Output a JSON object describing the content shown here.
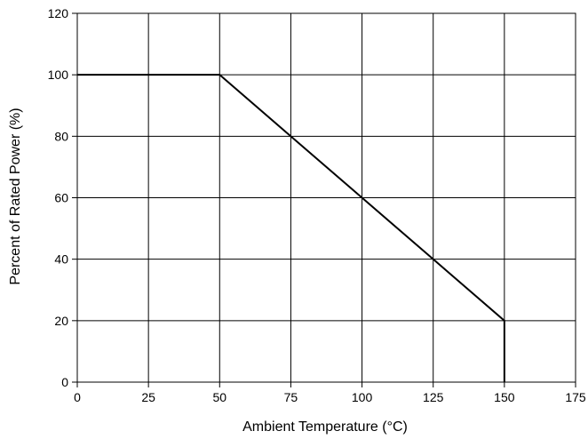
{
  "chart_data": {
    "type": "line",
    "title": "",
    "xlabel": "Ambient Temperature (°C)",
    "ylabel": "Percent of Rated Power (%)",
    "xlim": [
      0,
      175
    ],
    "ylim": [
      0,
      120
    ],
    "x_ticks": [
      0,
      25,
      50,
      75,
      100,
      125,
      150,
      175
    ],
    "y_ticks": [
      0,
      20,
      40,
      60,
      80,
      100,
      120
    ],
    "grid": true,
    "legend": "none",
    "series": [
      {
        "x": [
          0,
          50,
          75,
          100,
          125,
          150,
          150
        ],
        "y": [
          100,
          100,
          80,
          60,
          40,
          20,
          0
        ],
        "color": "#000000"
      }
    ]
  }
}
